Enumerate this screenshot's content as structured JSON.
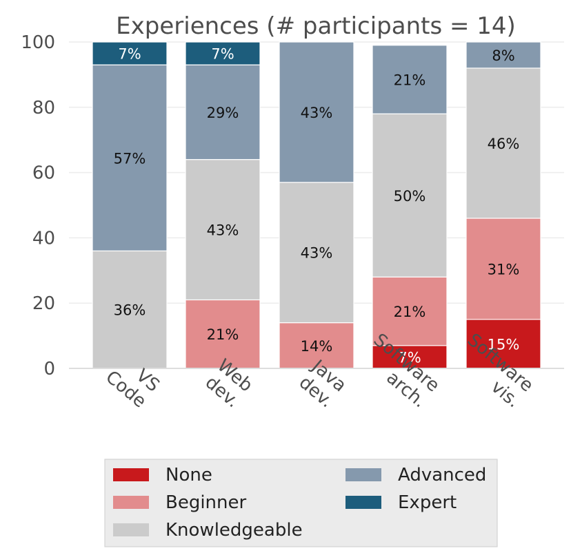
{
  "chart_data": {
    "type": "bar",
    "stacked": true,
    "title": "Experiences (# participants = 14)",
    "xlabel": "",
    "ylabel": "",
    "ylim": [
      0,
      100
    ],
    "yticks": [
      0,
      20,
      40,
      60,
      80,
      100
    ],
    "grid": "horizontal",
    "legend_position": "bottom",
    "categories": [
      "VS Code",
      "Web dev.",
      "Java dev.",
      "Software arch.",
      "Software vis."
    ],
    "category_lines": [
      [
        "VS",
        "Code"
      ],
      [
        "Web",
        "dev."
      ],
      [
        "Java",
        "dev."
      ],
      [
        "Software",
        "arch."
      ],
      [
        "Software",
        "vis."
      ]
    ],
    "series": [
      {
        "name": "None",
        "color": "#c8191c",
        "label_color": "#ffffff",
        "values": [
          0,
          0,
          0,
          7,
          15
        ]
      },
      {
        "name": "Beginner",
        "color": "#e28c8d",
        "label_color": "#111111",
        "values": [
          0,
          21,
          14,
          21,
          31
        ]
      },
      {
        "name": "Knowledgeable",
        "color": "#cbcbcb",
        "label_color": "#111111",
        "values": [
          36,
          43,
          43,
          50,
          46
        ]
      },
      {
        "name": "Advanced",
        "color": "#8599ad",
        "label_color": "#111111",
        "values": [
          57,
          29,
          43,
          21,
          8
        ]
      },
      {
        "name": "Expert",
        "color": "#1d5d7c",
        "label_color": "#ffffff",
        "values": [
          7,
          7,
          0,
          0,
          0
        ]
      }
    ],
    "labels": [
      [
        "",
        "",
        "36%",
        "57%",
        "7%"
      ],
      [
        "",
        "21%",
        "43%",
        "29%",
        "7%"
      ],
      [
        "",
        "14%",
        "43%",
        "43%",
        ""
      ],
      [
        "7%",
        "21%",
        "50%",
        "21%",
        ""
      ],
      [
        "15%",
        "31%",
        "46%",
        "8%",
        ""
      ]
    ],
    "legend_order": [
      "None",
      "Advanced",
      "Beginner",
      "Expert",
      "Knowledgeable"
    ]
  }
}
